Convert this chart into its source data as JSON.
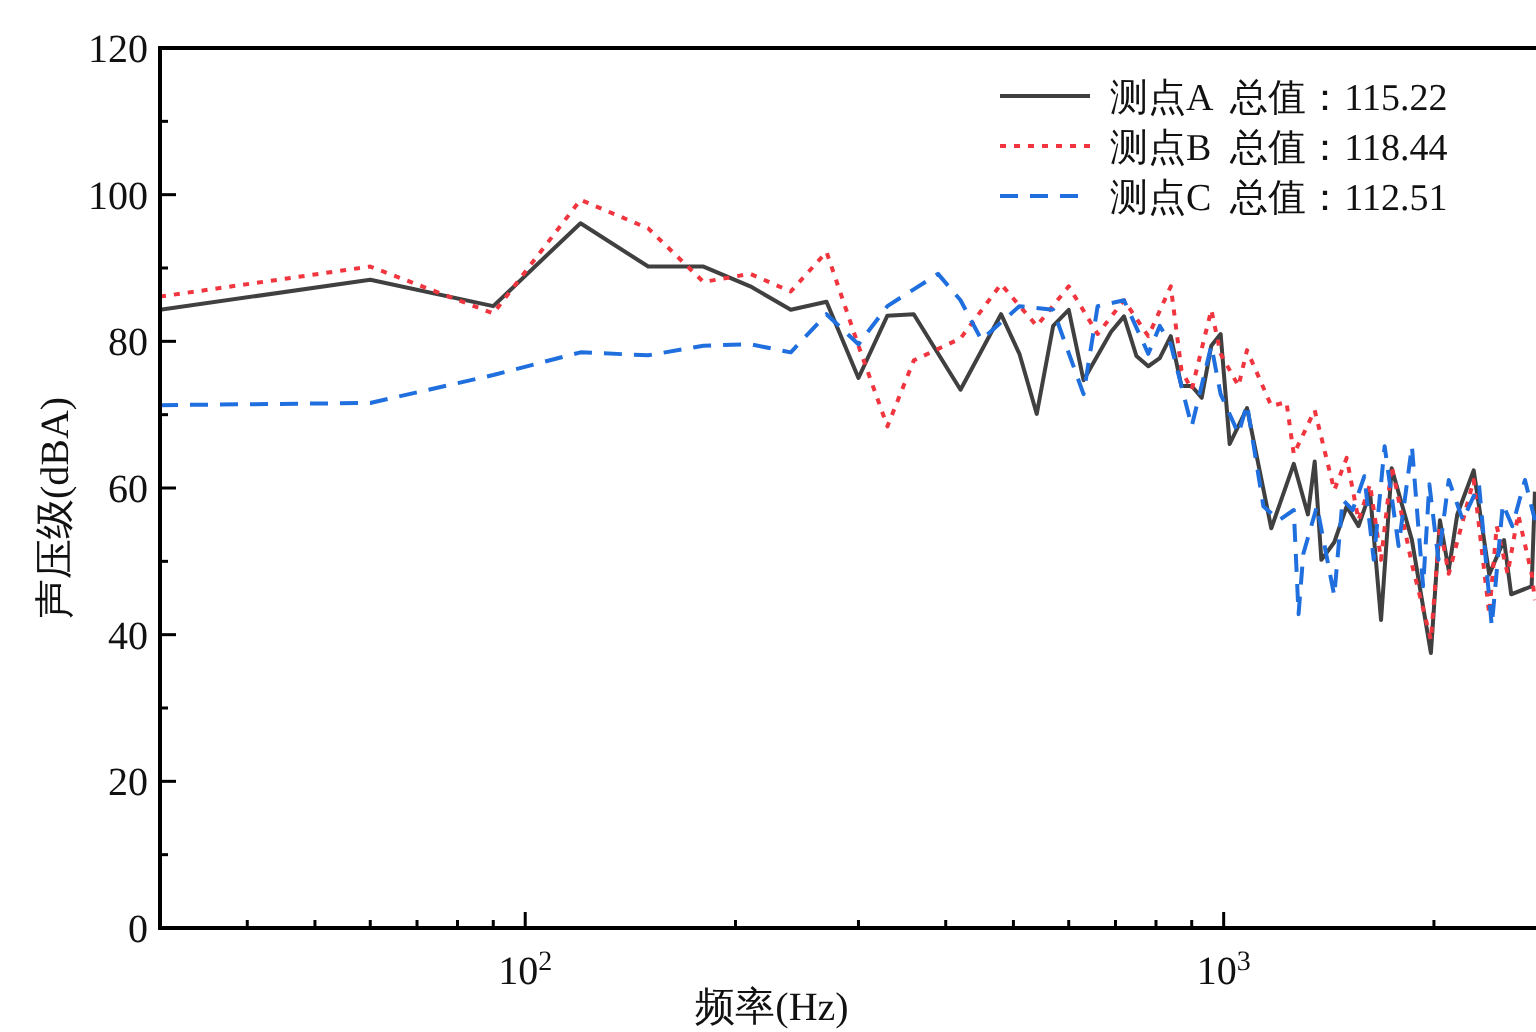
{
  "chart_data": {
    "type": "line",
    "xlabel": "频率(Hz)",
    "ylabel": "声压级(dBA)",
    "log": "x",
    "xlim": [
      30,
      2800
    ],
    "ylim": [
      0,
      120
    ],
    "xticks": [
      {
        "value": 40,
        "label": null
      },
      {
        "value": 50,
        "label": null
      },
      {
        "value": 60,
        "label": null
      },
      {
        "value": 70,
        "label": null
      },
      {
        "value": 80,
        "label": null
      },
      {
        "value": 90,
        "label": null
      },
      {
        "value": 100,
        "label": "10$^{2}$"
      },
      {
        "value": 200,
        "label": null
      },
      {
        "value": 300,
        "label": null
      },
      {
        "value": 400,
        "label": null
      },
      {
        "value": 500,
        "label": null
      },
      {
        "value": 600,
        "label": null
      },
      {
        "value": 700,
        "label": null
      },
      {
        "value": 800,
        "label": null
      },
      {
        "value": 900,
        "label": null
      },
      {
        "value": 1000,
        "label": "10$^{3}$"
      },
      {
        "value": 2000,
        "label": null
      }
    ],
    "yticks": [
      0,
      {
        "value": 10,
        "label": null
      },
      20,
      {
        "value": 30,
        "label": null
      },
      40,
      {
        "value": 50,
        "label": null
      },
      60,
      {
        "value": 70,
        "label": null
      },
      80,
      {
        "value": 90,
        "label": null
      },
      100,
      {
        "value": 110,
        "label": null
      },
      120
    ],
    "legend": "top right",
    "series": [
      {
        "name": "测点A  总值：115.22",
        "color": "#404040",
        "line_style": "solid",
        "x": [
          30,
          60,
          90,
          120,
          150,
          180,
          210,
          240,
          270,
          300,
          330,
          360,
          420,
          480,
          510,
          540,
          570,
          600,
          630,
          690,
          720,
          750,
          780,
          810,
          840,
          870,
          900,
          930,
          960,
          990,
          1020,
          1080,
          1170,
          1260,
          1320,
          1350,
          1380,
          1440,
          1500,
          1560,
          1620,
          1680,
          1740,
          1860,
          1980,
          2040,
          2100,
          2160,
          2280,
          2400,
          2520,
          2580,
          2760,
          2790
        ],
        "values": [
          84.3,
          88.4,
          84.8,
          96.1,
          90.2,
          90.2,
          87.5,
          84.3,
          85.4,
          75.0,
          83.5,
          83.7,
          73.4,
          83.7,
          78.3,
          70.1,
          82.1,
          84.3,
          74.7,
          81.3,
          83.4,
          78.0,
          76.6,
          77.7,
          80.7,
          73.9,
          73.9,
          72.3,
          79.4,
          81.0,
          66.0,
          70.9,
          54.5,
          63.3,
          56.4,
          63.6,
          50.2,
          52.6,
          57.5,
          54.8,
          59.4,
          42.0,
          62.7,
          52.9,
          37.5,
          55.6,
          48.8,
          56.4,
          62.4,
          48.2,
          52.9,
          45.5,
          46.6,
          59.5
        ]
      },
      {
        "name": "测点B  总值：118.44",
        "color": "#f0353f",
        "line_style": "dotted",
        "x": [
          30,
          60,
          90,
          120,
          150,
          180,
          210,
          240,
          270,
          300,
          330,
          360,
          420,
          480,
          540,
          600,
          660,
          720,
          780,
          840,
          870,
          900,
          960,
          990,
          1050,
          1080,
          1170,
          1230,
          1260,
          1350,
          1440,
          1500,
          1560,
          1620,
          1680,
          1740,
          1860,
          1980,
          2040,
          2100,
          2280,
          2400,
          2460,
          2550,
          2640,
          2760,
          2790
        ],
        "values": [
          86.1,
          90.2,
          83.8,
          99.3,
          95.4,
          88.1,
          89.2,
          86.8,
          92.2,
          79.4,
          68.4,
          77.4,
          80.4,
          87.8,
          82.1,
          87.5,
          81.0,
          85.6,
          80.7,
          87.5,
          76.1,
          73.4,
          84.3,
          78.3,
          73.9,
          78.8,
          71.2,
          71.7,
          64.6,
          70.6,
          59.7,
          64.1,
          55.6,
          60.5,
          50.2,
          63.0,
          49.6,
          39.3,
          54.8,
          48.3,
          61.1,
          42.8,
          54.8,
          48.3,
          56.4,
          48.3,
          44.7
        ]
      },
      {
        "name": "测点C  总值：112.51",
        "color": "#1f6fde",
        "line_style": "dashed",
        "x": [
          30,
          60,
          90,
          120,
          150,
          180,
          210,
          240,
          270,
          300,
          330,
          390,
          420,
          450,
          510,
          570,
          630,
          660,
          720,
          780,
          810,
          840,
          900,
          960,
          990,
          1050,
          1080,
          1140,
          1200,
          1260,
          1280,
          1300,
          1360,
          1440,
          1480,
          1530,
          1590,
          1640,
          1700,
          1780,
          1860,
          1930,
          1970,
          2030,
          2100,
          2200,
          2320,
          2420,
          2510,
          2590,
          2700,
          2790
        ],
        "values": [
          71.3,
          71.6,
          75.4,
          78.5,
          78.1,
          79.4,
          79.6,
          78.5,
          83.7,
          79.6,
          84.8,
          89.2,
          85.6,
          80.2,
          84.8,
          84.3,
          72.8,
          84.8,
          85.6,
          78.3,
          82.1,
          79.6,
          68.4,
          79.4,
          72.8,
          67.4,
          71.4,
          57.5,
          55.6,
          57.0,
          42.8,
          51.0,
          57.5,
          45.3,
          58.4,
          57.0,
          61.6,
          50.2,
          65.7,
          52.1,
          65.7,
          46.6,
          60.5,
          50.2,
          61.1,
          55.6,
          60.5,
          41.2,
          57.8,
          54.8,
          61.1,
          55.6
        ]
      }
    ]
  }
}
